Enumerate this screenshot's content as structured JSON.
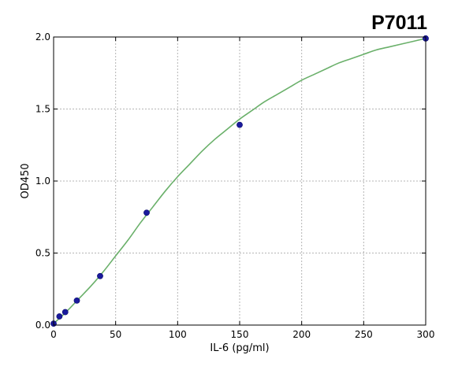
{
  "chart_data": {
    "type": "scatter",
    "title": "P7011",
    "xlabel": "IL-6 (pg/ml)",
    "ylabel": "OD450",
    "xlim": [
      0,
      300
    ],
    "ylim": [
      0.0,
      2.0
    ],
    "xticks": [
      0,
      50,
      100,
      150,
      200,
      250,
      300
    ],
    "xtick_labels": [
      "0",
      "50",
      "100",
      "150",
      "200",
      "250",
      "300"
    ],
    "yticks": [
      0.0,
      0.5,
      1.0,
      1.5,
      2.0
    ],
    "ytick_labels": [
      "0.0",
      "0.5",
      "1.0",
      "1.5",
      "2.0"
    ],
    "grid": true,
    "series": [
      {
        "kind": "points",
        "color": "#1a1a9c",
        "x": [
          0,
          4.69,
          9.38,
          18.75,
          37.5,
          75,
          150,
          300
        ],
        "y": [
          0.01,
          0.06,
          0.09,
          0.17,
          0.34,
          0.78,
          1.39,
          1.99
        ]
      },
      {
        "kind": "fit-curve",
        "color": "#6ab06a",
        "x": [
          0,
          10,
          20,
          30,
          40,
          50,
          60,
          70,
          80,
          90,
          100,
          110,
          120,
          130,
          140,
          150,
          160,
          170,
          180,
          190,
          200,
          210,
          220,
          230,
          240,
          250,
          260,
          270,
          280,
          290,
          300
        ],
        "y": [
          0.01,
          0.09,
          0.18,
          0.27,
          0.37,
          0.48,
          0.59,
          0.71,
          0.82,
          0.93,
          1.03,
          1.12,
          1.21,
          1.29,
          1.36,
          1.43,
          1.49,
          1.55,
          1.6,
          1.65,
          1.7,
          1.74,
          1.78,
          1.82,
          1.85,
          1.88,
          1.91,
          1.93,
          1.95,
          1.97,
          1.99
        ]
      }
    ]
  }
}
